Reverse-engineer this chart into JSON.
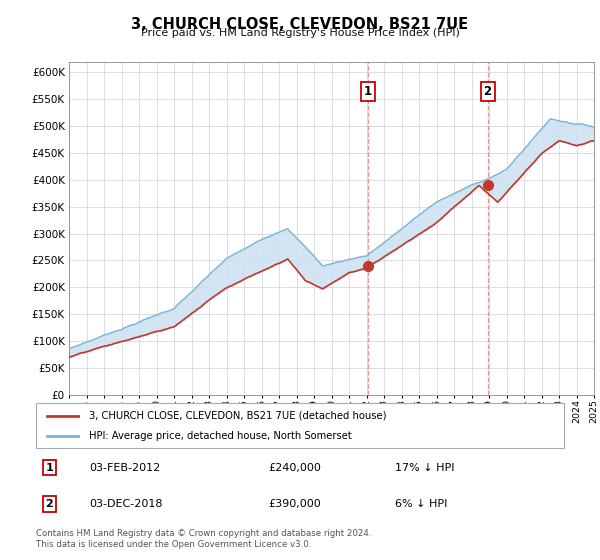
{
  "title": "3, CHURCH CLOSE, CLEVEDON, BS21 7UE",
  "subtitle": "Price paid vs. HM Land Registry's House Price Index (HPI)",
  "ylim": [
    0,
    620000
  ],
  "yticks": [
    0,
    50000,
    100000,
    150000,
    200000,
    250000,
    300000,
    350000,
    400000,
    450000,
    500000,
    550000,
    600000
  ],
  "xlim_start": 1995,
  "xlim_end": 2025,
  "purchase1_year": 2012.08,
  "purchase1_price": 240000,
  "purchase2_year": 2018.92,
  "purchase2_price": 390000,
  "hpi_color": "#7ab5d8",
  "price_color": "#c0392b",
  "fill_color": "#cce0f0",
  "legend_label1": "3, CHURCH CLOSE, CLEVEDON, BS21 7UE (detached house)",
  "legend_label2": "HPI: Average price, detached house, North Somerset",
  "ann1_label": "03-FEB-2012",
  "ann1_price": "£240,000",
  "ann1_hpi": "17% ↓ HPI",
  "ann2_label": "03-DEC-2018",
  "ann2_price": "£390,000",
  "ann2_hpi": "6% ↓ HPI",
  "footer": "Contains HM Land Registry data © Crown copyright and database right 2024.\nThis data is licensed under the Open Government Licence v3.0."
}
